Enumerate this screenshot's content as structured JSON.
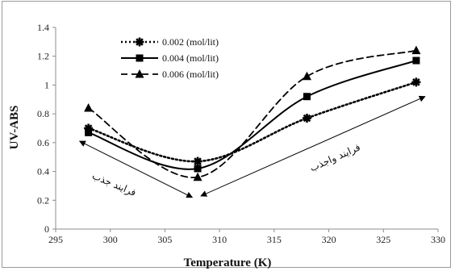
{
  "chart_data": {
    "type": "line",
    "title": "",
    "xlabel": "Temperature (K)",
    "ylabel": "UV-ABS",
    "xlim": [
      295,
      330
    ],
    "ylim": [
      0,
      1.4
    ],
    "xticks": [
      295,
      300,
      305,
      310,
      315,
      320,
      325,
      330
    ],
    "yticks": [
      0,
      0.2,
      0.4,
      0.6,
      0.8,
      1,
      1.2,
      1.4
    ],
    "ytick_labels": [
      "0",
      "0.2",
      "0.4",
      "0.6",
      "0.8",
      "1",
      "1.2",
      "1.4"
    ],
    "grid": false,
    "legend_position": "top-left",
    "x": [
      298,
      308,
      318,
      328
    ],
    "series": [
      {
        "name": "0.002 (mol/lit)",
        "values": [
          0.7,
          0.47,
          0.77,
          1.02
        ],
        "marker": "asterisk",
        "line_style": "dotted",
        "color": "#000000"
      },
      {
        "name": "0.004 (mol/lit)",
        "values": [
          0.67,
          0.42,
          0.92,
          1.17
        ],
        "marker": "square",
        "line_style": "solid",
        "color": "#000000"
      },
      {
        "name": "0.006 (mol/lit)",
        "values": [
          0.84,
          0.36,
          1.06,
          1.24
        ],
        "marker": "triangle",
        "line_style": "dashed",
        "color": "#000000"
      }
    ],
    "annotations": [
      {
        "text": "فرایند جذب",
        "arrow_from": [
          297.2,
          0.61
        ],
        "arrow_to": [
          307.5,
          0.22
        ]
      },
      {
        "text": "فرایند واجذب",
        "arrow_from": [
          308.3,
          0.23
        ],
        "arrow_to": [
          328.8,
          0.92
        ]
      }
    ]
  }
}
